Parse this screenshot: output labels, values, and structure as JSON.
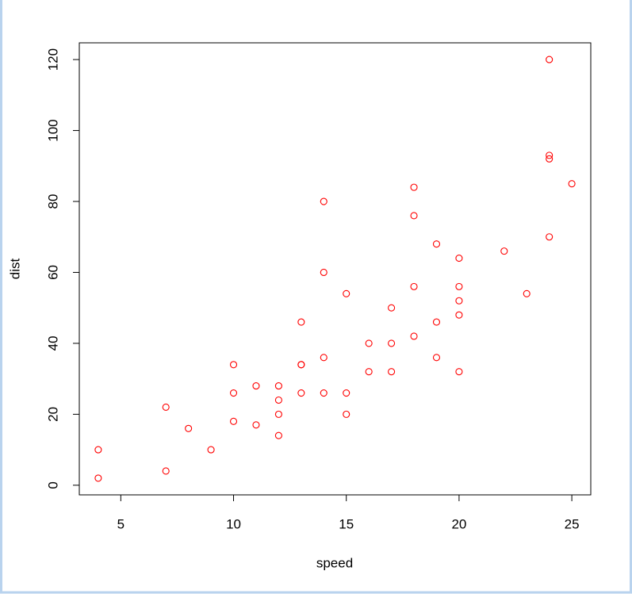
{
  "chart_data": {
    "type": "scatter",
    "xlabel": "speed",
    "ylabel": "dist",
    "x": [
      4,
      4,
      7,
      7,
      8,
      9,
      10,
      10,
      10,
      11,
      11,
      12,
      12,
      12,
      12,
      13,
      13,
      13,
      13,
      14,
      14,
      14,
      14,
      15,
      15,
      15,
      16,
      16,
      17,
      17,
      17,
      18,
      18,
      18,
      18,
      19,
      19,
      19,
      20,
      20,
      20,
      20,
      20,
      22,
      23,
      24,
      24,
      24,
      24,
      25
    ],
    "series": [
      {
        "color": "#ff0000",
        "values": [
          2,
          10,
          4,
          22,
          16,
          10,
          18,
          26,
          34,
          17,
          28,
          14,
          20,
          24,
          28,
          26,
          34,
          34,
          46,
          26,
          36,
          60,
          80,
          20,
          26,
          54,
          32,
          40,
          32,
          40,
          50,
          42,
          56,
          76,
          84,
          36,
          46,
          68,
          32,
          48,
          52,
          56,
          64,
          66,
          54,
          70,
          92,
          93,
          120,
          85
        ]
      }
    ],
    "xlim": [
      3.16,
      25.84
    ],
    "xticks": [
      5,
      10,
      15,
      20,
      25
    ],
    "ylim": [
      -2.72,
      124.72
    ],
    "yticks": [
      0,
      20,
      40,
      60,
      80,
      100,
      120
    ],
    "grid": false
  }
}
